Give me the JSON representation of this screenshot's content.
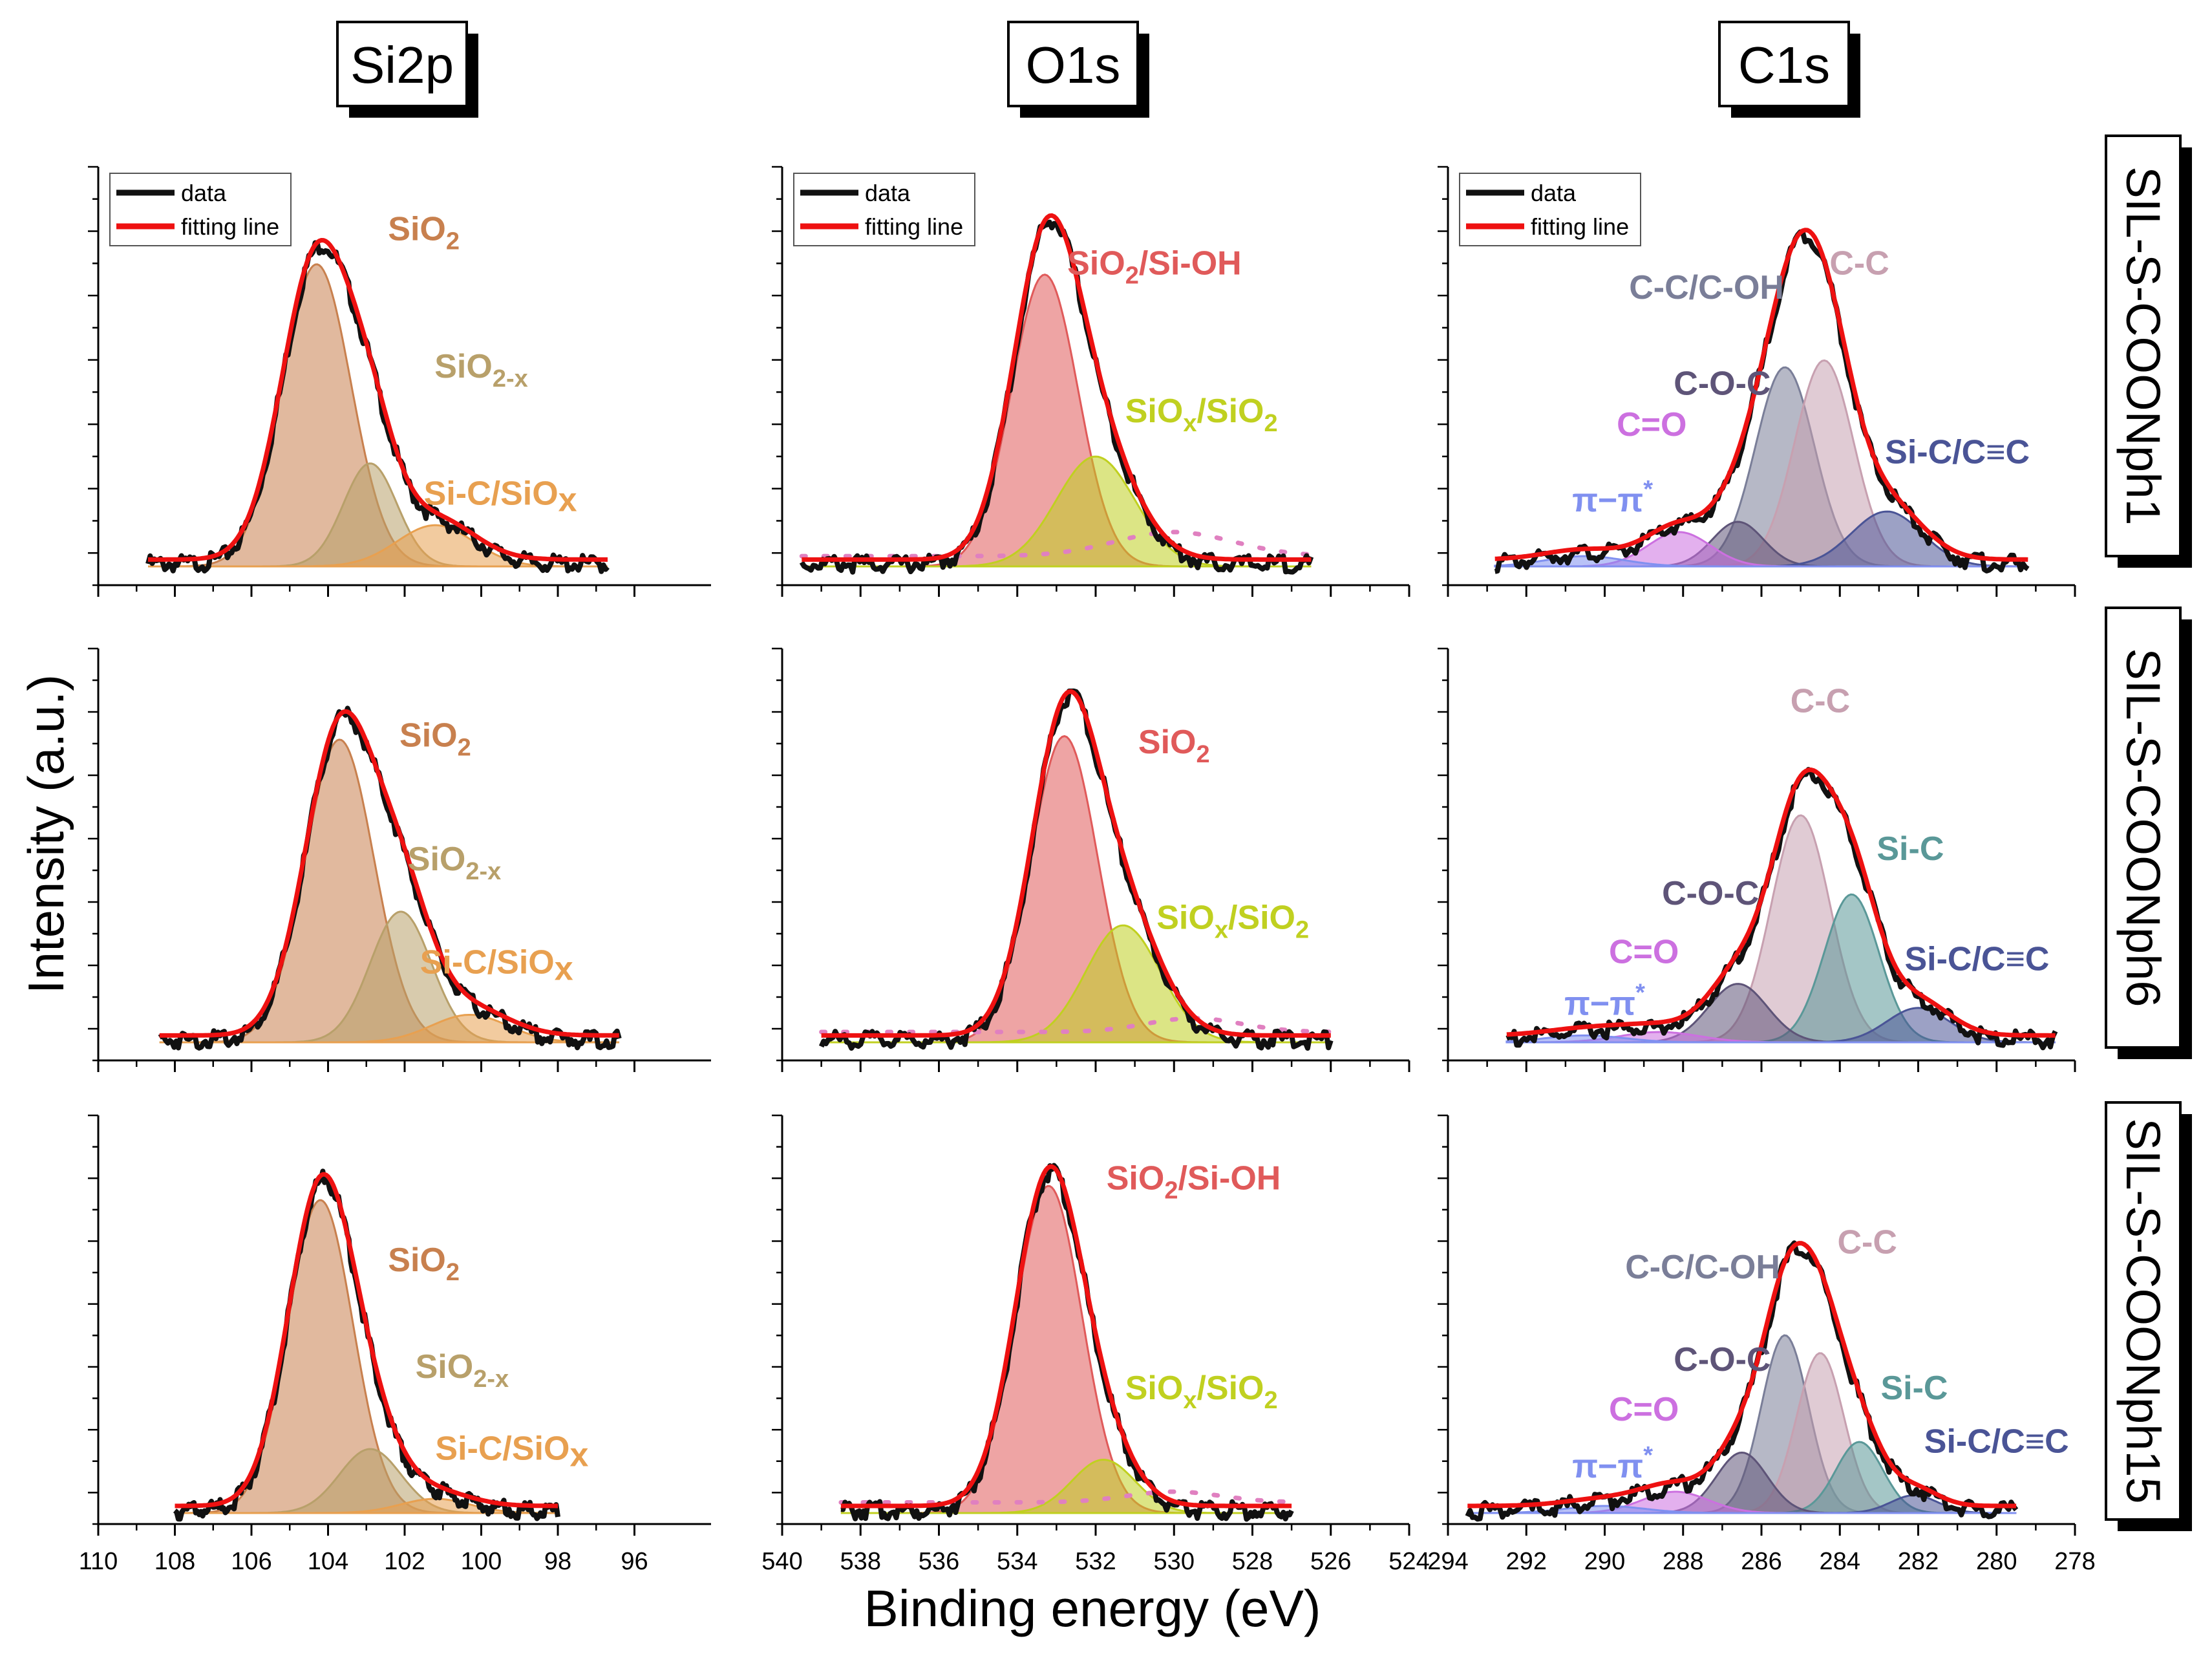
{
  "chart_data": {
    "type": "line",
    "figure": {
      "xlabel": "Binding energy (eV)",
      "ylabel": "Intensity (a.u.)",
      "legend": {
        "data": "data",
        "fit": "fitting line"
      },
      "column_titles": [
        "Si2p",
        "O1s",
        "C1s"
      ],
      "row_titles": [
        "SIL-S-COONph1",
        "SIL-S-COONph6",
        "SIL-S-COONph15"
      ]
    },
    "colors": {
      "data": "#111111",
      "fit": "#ee1111",
      "SiO2": "#c8804e",
      "SiO2x": "#b8a06a",
      "SiCSiOx": "#e8a050",
      "SiOH": "#e05a5a",
      "SiOx": "#c0d020",
      "oxline": "#e080c0",
      "CCOH": "#7a7e98",
      "COC": "#5e5478",
      "CC": "#c7a0b0",
      "SiCCC": "#4a5496",
      "SiC": "#5a9898",
      "CO": "#cc70e0",
      "pipi": "#8090f0"
    },
    "columns": [
      {
        "title": "Si2p",
        "xlim": [
          110,
          94
        ],
        "ticks": [
          110,
          108,
          106,
          104,
          102,
          100,
          98,
          96
        ]
      },
      {
        "title": "O1s",
        "xlim": [
          540,
          524
        ],
        "ticks": [
          540,
          538,
          536,
          534,
          532,
          530,
          528,
          526,
          524
        ]
      },
      {
        "title": "C1s",
        "xlim": [
          294,
          278
        ],
        "ticks": [
          294,
          292,
          290,
          288,
          286,
          284,
          282,
          280,
          278
        ]
      }
    ],
    "panels": [
      {
        "row": 0,
        "col": 0,
        "range": [
          108.7,
          96.7
        ],
        "peak": 104.1,
        "fill": 0.9,
        "components": [
          {
            "name": "SiO2",
            "center": 104.3,
            "sigma": 0.9,
            "amp": 0.88,
            "color": "SiO2"
          },
          {
            "name": "SiO2-x",
            "center": 102.9,
            "sigma": 0.7,
            "amp": 0.3,
            "color": "SiO2x"
          },
          {
            "name": "Si-C/SiOx",
            "center": 101.2,
            "sigma": 1.0,
            "amp": 0.12,
            "color": "SiCSiOx"
          }
        ],
        "labels": [
          {
            "text": "SiO",
            "sub": "2",
            "x": 101.5,
            "y": 0.95,
            "color": "SiO2"
          },
          {
            "text": "SiO",
            "sub": "2-x",
            "x": 100.0,
            "y": 0.55,
            "color": "SiO2x"
          },
          {
            "text": "Si-C/SiO",
            "sub": "x",
            "x": 99.5,
            "y": 0.18,
            "color": "SiCSiOx",
            "subbig": true
          }
        ]
      },
      {
        "row": 0,
        "col": 1,
        "range": [
          539.5,
          526.5
        ],
        "peak": 533.2,
        "fill": 0.9,
        "components": [
          {
            "name": "SiO2/Si-OH",
            "center": 533.3,
            "sigma": 0.85,
            "amp": 0.85,
            "color": "SiOH"
          },
          {
            "name": "SiOx/SiO2",
            "center": 532.0,
            "sigma": 1.0,
            "amp": 0.32,
            "color": "SiOx"
          }
        ],
        "dots": {
          "center": 530.0,
          "sigma": 1.5,
          "amp": 0.07
        },
        "labels": [
          {
            "text": "SiO",
            "sub": "2",
            "after": "/Si-OH",
            "x": 530.5,
            "y": 0.85,
            "color": "SiOH"
          },
          {
            "text": "SiO",
            "sub": "x",
            "after": "/SiO",
            "sub2": "2",
            "x": 529.3,
            "y": 0.42,
            "color": "SiOx"
          }
        ]
      },
      {
        "row": 0,
        "col": 2,
        "range": [
          292.8,
          279.2
        ],
        "peak": 285.0,
        "fill": 0.92,
        "components": [
          {
            "name": "C-C/C-OH",
            "center": 285.4,
            "sigma": 0.75,
            "amp": 0.58,
            "color": "CCOH"
          },
          {
            "name": "C-C",
            "center": 284.4,
            "sigma": 0.75,
            "amp": 0.6,
            "color": "CC"
          },
          {
            "name": "C-O-C",
            "center": 286.6,
            "sigma": 0.65,
            "amp": 0.13,
            "color": "COC"
          },
          {
            "name": "Si-C/C≡C",
            "center": 282.8,
            "sigma": 0.9,
            "amp": 0.16,
            "color": "SiCCC"
          },
          {
            "name": "C=O",
            "center": 288.1,
            "sigma": 0.8,
            "amp": 0.1,
            "color": "CO"
          },
          {
            "name": "π−π*",
            "center": 290.5,
            "sigma": 1.0,
            "amp": 0.03,
            "color": "pipi"
          }
        ],
        "labels": [
          {
            "text": "C-C/C-OH",
            "x": 287.4,
            "y": 0.78,
            "color": "CCOH"
          },
          {
            "text": "C-C",
            "x": 283.5,
            "y": 0.85,
            "color": "CC"
          },
          {
            "text": "C-O-C",
            "x": 287.0,
            "y": 0.5,
            "color": "COC"
          },
          {
            "text": "C=O",
            "x": 288.8,
            "y": 0.38,
            "color": "CO"
          },
          {
            "text": "Si-C/C≡C",
            "x": 281.0,
            "y": 0.3,
            "color": "SiCCC"
          },
          {
            "text": "π−π",
            "sup": "*",
            "x": 289.8,
            "y": 0.16,
            "color": "pipi"
          }
        ]
      },
      {
        "row": 1,
        "col": 0,
        "range": [
          108.4,
          96.4
        ],
        "peak": 103.5,
        "fill": 0.9,
        "components": [
          {
            "name": "SiO2",
            "center": 103.7,
            "sigma": 0.9,
            "amp": 0.88,
            "color": "SiO2"
          },
          {
            "name": "SiO2-x",
            "center": 102.1,
            "sigma": 0.8,
            "amp": 0.38,
            "color": "SiO2x"
          },
          {
            "name": "Si-C/SiOx",
            "center": 100.3,
            "sigma": 1.0,
            "amp": 0.08,
            "color": "SiCSiOx"
          }
        ],
        "labels": [
          {
            "text": "SiO",
            "sub": "2",
            "x": 101.2,
            "y": 0.86,
            "color": "SiO2"
          },
          {
            "text": "SiO",
            "sub": "2-x",
            "x": 100.7,
            "y": 0.5,
            "color": "SiO2x"
          },
          {
            "text": "Si-C/SiO",
            "sub": "x",
            "x": 99.6,
            "y": 0.2,
            "color": "SiCSiOx",
            "subbig": true
          }
        ]
      },
      {
        "row": 1,
        "col": 1,
        "range": [
          539.0,
          526.0
        ],
        "peak": 532.8,
        "fill": 0.9,
        "components": [
          {
            "name": "SiO2",
            "center": 532.8,
            "sigma": 0.85,
            "amp": 0.89,
            "color": "SiOH"
          },
          {
            "name": "SiOx/SiO2",
            "center": 531.3,
            "sigma": 0.95,
            "amp": 0.34,
            "color": "SiOx"
          }
        ],
        "dots": {
          "center": 529.5,
          "sigma": 1.2,
          "amp": 0.04
        },
        "labels": [
          {
            "text": "SiO",
            "sub": "2",
            "x": 530.0,
            "y": 0.84,
            "color": "SiOH"
          },
          {
            "text": "SiO",
            "sub": "x",
            "after": "/SiO",
            "sub2": "2",
            "x": 528.5,
            "y": 0.33,
            "color": "SiOx"
          }
        ]
      },
      {
        "row": 1,
        "col": 2,
        "range": [
          292.5,
          278.5
        ],
        "peak": 284.8,
        "fill": 0.88,
        "components": [
          {
            "name": "C-C",
            "center": 285.0,
            "sigma": 0.75,
            "amp": 0.66,
            "color": "CC"
          },
          {
            "name": "Si-C",
            "center": 283.7,
            "sigma": 0.7,
            "amp": 0.43,
            "color": "SiC"
          },
          {
            "name": "C-O-C",
            "center": 286.6,
            "sigma": 0.75,
            "amp": 0.17,
            "color": "COC"
          },
          {
            "name": "Si-C/C≡C",
            "center": 282.0,
            "sigma": 0.8,
            "amp": 0.1,
            "color": "SiCCC"
          },
          {
            "name": "C=O",
            "center": 288.6,
            "sigma": 1.0,
            "amp": 0.03,
            "color": "CO"
          },
          {
            "name": "π−π*",
            "center": 290.5,
            "sigma": 1.0,
            "amp": 0.02,
            "color": "pipi"
          }
        ],
        "labels": [
          {
            "text": "C-C",
            "x": 284.5,
            "y": 0.96,
            "color": "CC"
          },
          {
            "text": "Si-C",
            "x": 282.2,
            "y": 0.53,
            "color": "SiC"
          },
          {
            "text": "C-O-C",
            "x": 287.3,
            "y": 0.4,
            "color": "COC"
          },
          {
            "text": "C=O",
            "x": 289.0,
            "y": 0.23,
            "color": "CO"
          },
          {
            "text": "Si-C/C≡C",
            "x": 280.5,
            "y": 0.21,
            "color": "SiCCC"
          },
          {
            "text": "π−π",
            "sup": "*",
            "x": 290.0,
            "y": 0.08,
            "color": "pipi"
          }
        ]
      },
      {
        "row": 2,
        "col": 0,
        "range": [
          108.0,
          98.0
        ],
        "peak": 104.0,
        "fill": 0.92,
        "components": [
          {
            "name": "SiO2",
            "center": 104.2,
            "sigma": 0.85,
            "amp": 0.88,
            "color": "SiO2"
          },
          {
            "name": "SiO2-x",
            "center": 102.9,
            "sigma": 0.8,
            "amp": 0.18,
            "color": "SiO2x"
          },
          {
            "name": "Si-C/SiOx",
            "center": 101.2,
            "sigma": 0.9,
            "amp": 0.04,
            "color": "SiCSiOx"
          }
        ],
        "labels": [
          {
            "text": "SiO",
            "sub": "2",
            "x": 101.5,
            "y": 0.68,
            "color": "SiO2"
          },
          {
            "text": "SiO",
            "sub": "2-x",
            "x": 100.5,
            "y": 0.38,
            "color": "SiO2x"
          },
          {
            "text": "Si-C/SiO",
            "sub": "x",
            "x": 99.2,
            "y": 0.15,
            "color": "SiCSiOx",
            "subbig": true
          }
        ]
      },
      {
        "row": 2,
        "col": 1,
        "range": [
          538.5,
          527.0
        ],
        "peak": 533.2,
        "fill": 0.92,
        "components": [
          {
            "name": "SiO2/Si-OH",
            "center": 533.2,
            "sigma": 0.85,
            "amp": 0.92,
            "color": "SiOH"
          },
          {
            "name": "SiOx/SiO2",
            "center": 531.8,
            "sigma": 0.8,
            "amp": 0.15,
            "color": "SiOx"
          }
        ],
        "dots": {
          "center": 530.0,
          "sigma": 1.2,
          "amp": 0.03
        },
        "labels": [
          {
            "text": "SiO",
            "sub": "2",
            "after": "/Si-OH",
            "x": 529.5,
            "y": 0.91,
            "color": "SiOH"
          },
          {
            "text": "SiO",
            "sub": "x",
            "after": "/SiO",
            "sub2": "2",
            "x": 529.3,
            "y": 0.32,
            "color": "SiOx"
          }
        ]
      },
      {
        "row": 2,
        "col": 2,
        "range": [
          293.5,
          279.5
        ],
        "peak": 284.9,
        "fill": 0.9,
        "components": [
          {
            "name": "C-C/C-OH",
            "center": 285.4,
            "sigma": 0.6,
            "amp": 0.5,
            "color": "CCOH"
          },
          {
            "name": "C-C",
            "center": 284.5,
            "sigma": 0.6,
            "amp": 0.45,
            "color": "CC"
          },
          {
            "name": "Si-C",
            "center": 283.5,
            "sigma": 0.6,
            "amp": 0.2,
            "color": "SiC"
          },
          {
            "name": "C-O-C",
            "center": 286.5,
            "sigma": 0.65,
            "amp": 0.17,
            "color": "COC"
          },
          {
            "name": "Si-C/C≡C",
            "center": 282.1,
            "sigma": 0.6,
            "amp": 0.05,
            "color": "SiCCC"
          },
          {
            "name": "C=O",
            "center": 288.2,
            "sigma": 0.85,
            "amp": 0.06,
            "color": "CO"
          },
          {
            "name": "π−π*",
            "center": 290.0,
            "sigma": 1.0,
            "amp": 0.02,
            "color": "pipi"
          }
        ],
        "labels": [
          {
            "text": "C-C/C-OH",
            "x": 287.5,
            "y": 0.66,
            "color": "CCOH"
          },
          {
            "text": "C-C",
            "x": 283.3,
            "y": 0.73,
            "color": "CC"
          },
          {
            "text": "C-O-C",
            "x": 287.0,
            "y": 0.4,
            "color": "COC"
          },
          {
            "text": "C=O",
            "x": 289.0,
            "y": 0.26,
            "color": "CO"
          },
          {
            "text": "Si-C",
            "x": 282.1,
            "y": 0.32,
            "color": "SiC"
          },
          {
            "text": "Si-C/C≡C",
            "x": 280.0,
            "y": 0.17,
            "color": "SiCCC"
          },
          {
            "text": "π−π",
            "sup": "*",
            "x": 289.8,
            "y": 0.1,
            "color": "pipi"
          }
        ]
      }
    ]
  }
}
